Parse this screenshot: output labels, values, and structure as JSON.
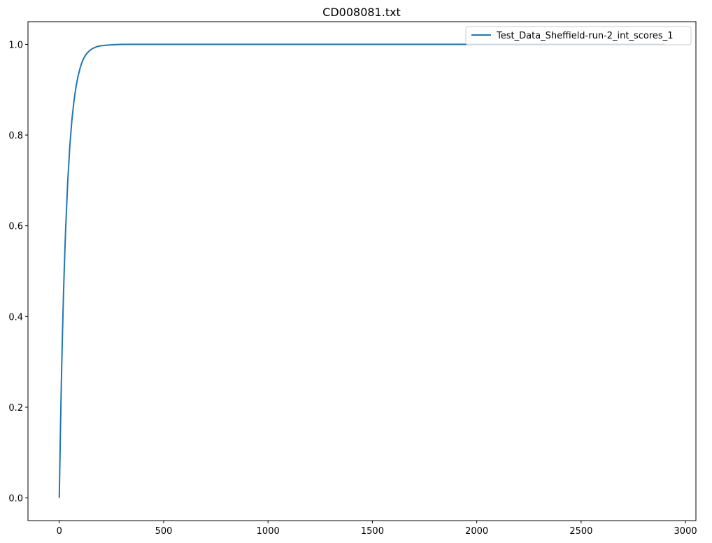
{
  "chart_data": {
    "type": "line",
    "title": "CD008081.txt",
    "xlabel": "",
    "ylabel": "",
    "xlim": [
      -150,
      3050
    ],
    "ylim": [
      -0.05,
      1.05
    ],
    "x_ticks": [
      0,
      500,
      1000,
      1500,
      2000,
      2500,
      3000
    ],
    "x_tick_labels": [
      "0",
      "500",
      "1000",
      "1500",
      "2000",
      "2500",
      "3000"
    ],
    "y_ticks": [
      0.0,
      0.2,
      0.4,
      0.6,
      0.8,
      1.0
    ],
    "y_tick_labels": [
      "0.0",
      "0.2",
      "0.4",
      "0.6",
      "0.8",
      "1.0"
    ],
    "grid": false,
    "legend_position": "top-right",
    "series": [
      {
        "name": "Test_Data_Sheffield-run-2_int_scores_1",
        "color": "#1f77b4",
        "x": [
          0,
          5,
          10,
          15,
          20,
          25,
          30,
          40,
          50,
          60,
          70,
          80,
          90,
          100,
          110,
          120,
          130,
          140,
          150,
          160,
          180,
          200,
          220,
          250,
          300,
          400,
          500,
          1000,
          1500,
          2000,
          2500,
          2900
        ],
        "y": [
          0.0,
          0.137,
          0.256,
          0.357,
          0.446,
          0.522,
          0.587,
          0.693,
          0.773,
          0.831,
          0.874,
          0.906,
          0.93,
          0.948,
          0.962,
          0.972,
          0.979,
          0.984,
          0.988,
          0.991,
          0.995,
          0.997,
          0.998,
          0.999,
          1.0,
          1.0,
          1.0,
          1.0,
          1.0,
          1.0,
          1.0,
          1.0
        ]
      }
    ]
  }
}
